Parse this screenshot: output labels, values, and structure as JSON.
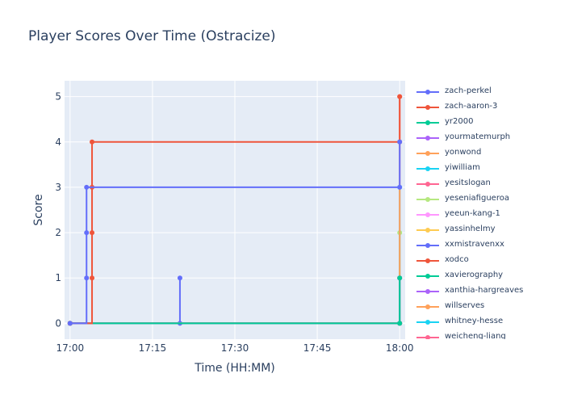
{
  "chart_data": {
    "type": "line",
    "title": "Player Scores Over Time (Ostracize)",
    "xlabel": "Time (HH:MM)",
    "ylabel": "Score",
    "x_ticks": [
      "17:00",
      "17:15",
      "17:30",
      "17:45",
      "18:00"
    ],
    "y_ticks": [
      "0",
      "1",
      "2",
      "3",
      "4",
      "5"
    ],
    "xlim": [
      "16:59",
      "18:01"
    ],
    "ylim": [
      -0.35,
      5.35
    ],
    "grid": true,
    "legend_position": "right",
    "line_shape": "step",
    "series": [
      {
        "name": "zach-perkel",
        "color": "#636efa",
        "points": [
          [
            "17:00",
            0
          ],
          [
            "17:03",
            1
          ],
          [
            "17:03",
            2
          ],
          [
            "17:03",
            3
          ],
          [
            "18:00",
            3
          ],
          [
            "18:00",
            4
          ]
        ]
      },
      {
        "name": "zach-aaron-3",
        "color": "#ef553b",
        "points": [
          [
            "17:00",
            0
          ],
          [
            "17:04",
            1
          ],
          [
            "17:04",
            2
          ],
          [
            "17:04",
            3
          ],
          [
            "17:04",
            4
          ],
          [
            "18:00",
            4
          ],
          [
            "18:00",
            5
          ]
        ]
      },
      {
        "name": "yr2000",
        "color": "#00cc96",
        "points": [
          [
            "17:00",
            0
          ],
          [
            "18:00",
            0
          ],
          [
            "18:00",
            1
          ]
        ]
      },
      {
        "name": "yourmatemurph",
        "color": "#ab63fa",
        "points": [
          [
            "17:00",
            0
          ],
          [
            "18:00",
            0
          ],
          [
            "18:00",
            1
          ]
        ]
      },
      {
        "name": "yonwond",
        "color": "#ffa15a",
        "points": [
          [
            "17:00",
            0
          ],
          [
            "18:00",
            0
          ],
          [
            "18:00",
            5
          ]
        ]
      },
      {
        "name": "yiwilliam",
        "color": "#19d3f3",
        "points": [
          [
            "17:00",
            0
          ],
          [
            "18:00",
            0
          ],
          [
            "18:00",
            3
          ]
        ]
      },
      {
        "name": "yesitslogan",
        "color": "#ff6692",
        "points": [
          [
            "17:00",
            0
          ],
          [
            "18:00",
            0
          ],
          [
            "18:00",
            1
          ]
        ]
      },
      {
        "name": "yeseniafigueroa",
        "color": "#b6e880",
        "points": [
          [
            "17:00",
            0
          ],
          [
            "18:00",
            0
          ],
          [
            "18:00",
            2
          ]
        ]
      },
      {
        "name": "yeeun-kang-1",
        "color": "#ff97ff",
        "points": [
          [
            "17:00",
            0
          ],
          [
            "18:00",
            0
          ],
          [
            "18:00",
            5
          ]
        ]
      },
      {
        "name": "yassinhelmy",
        "color": "#fecb52",
        "points": [
          [
            "17:00",
            0
          ],
          [
            "18:00",
            0
          ],
          [
            "18:00",
            1
          ]
        ]
      },
      {
        "name": "xxmistravenxx",
        "color": "#636efa",
        "points": [
          [
            "17:00",
            0
          ],
          [
            "17:20",
            0
          ],
          [
            "17:20",
            1
          ]
        ]
      },
      {
        "name": "xodco",
        "color": "#ef553b",
        "points": [
          [
            "17:00",
            0
          ],
          [
            "18:00",
            0
          ]
        ]
      },
      {
        "name": "xavierography",
        "color": "#00cc96",
        "points": [
          [
            "17:00",
            0
          ],
          [
            "18:00",
            0
          ]
        ]
      },
      {
        "name": "xanthia-hargreaves",
        "color": "#ab63fa",
        "points": [
          [
            "17:00",
            0
          ],
          [
            "18:00",
            0
          ]
        ]
      },
      {
        "name": "willserves",
        "color": "#ffa15a",
        "points": [
          [
            "17:00",
            0
          ],
          [
            "18:00",
            0
          ]
        ]
      },
      {
        "name": "whitney-hesse",
        "color": "#19d3f3",
        "points": [
          [
            "17:00",
            0
          ],
          [
            "18:00",
            0
          ]
        ]
      },
      {
        "name": "weicheng-liang",
        "color": "#ff6692",
        "points": [
          [
            "17:00",
            0
          ],
          [
            "18:00",
            0
          ]
        ]
      }
    ]
  }
}
